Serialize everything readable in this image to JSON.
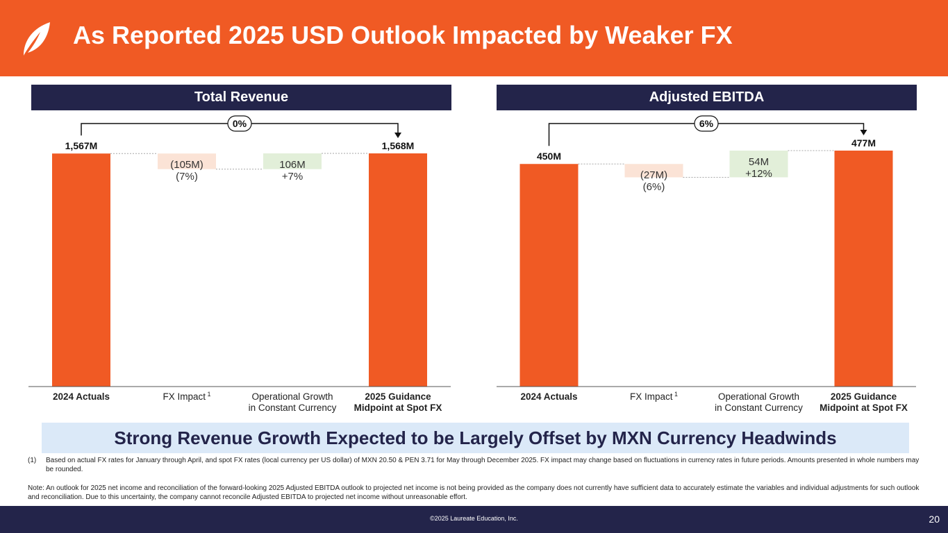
{
  "slide": {
    "title": "As Reported 2025 USD Outlook Impacted by Weaker FX",
    "banner": "Strong Revenue Growth Expected to be Largely Offset by MXN Currency Headwinds",
    "footnote_number": "(1)",
    "footnote": "Based on actual FX rates for January through April, and spot FX rates (local currency per US dollar) of MXN 20.50 & PEN 3.71 for May through December 2025. FX impact may change based on fluctuations in currency rates in future periods. Amounts presented in whole numbers may be rounded.",
    "note": "Note: An outlook for 2025 net income and reconciliation of the forward-looking 2025 Adjusted EBITDA outlook to projected net income is not being provided as the company does not currently have sufficient data to accurately estimate the variables and individual adjustments for such outlook and reconciliation. Due to this uncertainty, the company cannot reconcile Adjusted EBITDA to projected net income without unreasonable effort.",
    "copyright": "©2025 Laureate Education, Inc.",
    "page_number": "20"
  },
  "colors": {
    "orange": "#f05a24",
    "navy": "#23244a",
    "neg_fill": "#fbe3d6",
    "pos_fill": "#e2efd9",
    "banner_bg": "#dbe9f8"
  },
  "chart_data": [
    {
      "type": "waterfall",
      "title": "Total Revenue",
      "unit": "M",
      "categories": [
        {
          "line1": "2024 Actuals",
          "line2": "",
          "sup": "",
          "bold": true
        },
        {
          "line1": "FX Impact",
          "line2": "",
          "sup": "1",
          "bold": false
        },
        {
          "line1": "Operational Growth",
          "line2": "in Constant Currency",
          "sup": "",
          "bold": false
        },
        {
          "line1": "2025 Guidance",
          "line2": "Midpoint at Spot FX",
          "sup": "",
          "bold": true
        }
      ],
      "values": [
        1567,
        -105,
        106,
        1568
      ],
      "kinds": [
        "total",
        "delta",
        "delta",
        "total"
      ],
      "labels": [
        [
          "1,567M"
        ],
        [
          "(105M)",
          "(7%)"
        ],
        [
          "106M",
          "+7%"
        ],
        [
          "1,568M"
        ]
      ],
      "change_label": "0%",
      "ymax": 1568
    },
    {
      "type": "waterfall",
      "title": "Adjusted EBITDA",
      "unit": "M",
      "categories": [
        {
          "line1": "2024 Actuals",
          "line2": "",
          "sup": "",
          "bold": true
        },
        {
          "line1": "FX Impact",
          "line2": "",
          "sup": "1",
          "bold": false
        },
        {
          "line1": "Operational Growth",
          "line2": "in Constant Currency",
          "sup": "",
          "bold": false
        },
        {
          "line1": "2025 Guidance",
          "line2": "Midpoint at Spot FX",
          "sup": "",
          "bold": true
        }
      ],
      "values": [
        450,
        -27,
        54,
        477
      ],
      "kinds": [
        "total",
        "delta",
        "delta",
        "total"
      ],
      "labels": [
        [
          "450M"
        ],
        [
          "(27M)",
          "(6%)"
        ],
        [
          "54M",
          "+12%"
        ],
        [
          "477M"
        ]
      ],
      "change_label": "6%",
      "ymax": 477
    }
  ]
}
